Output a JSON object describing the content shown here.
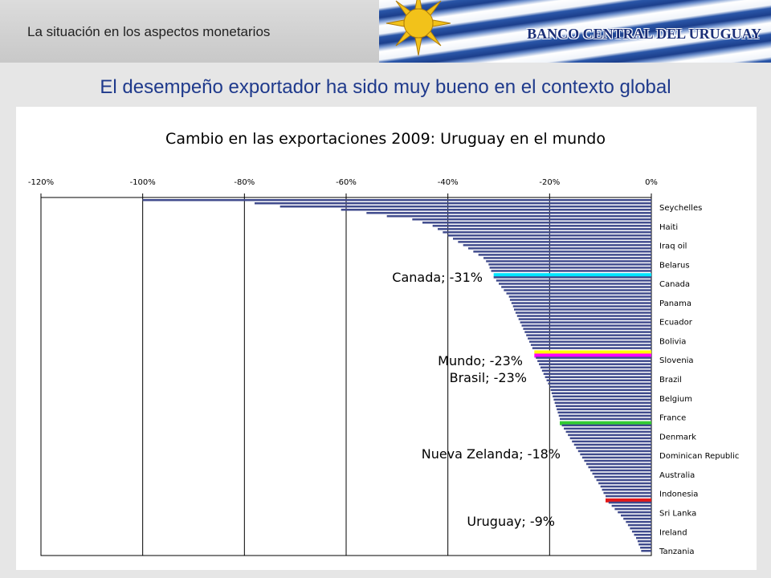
{
  "header": {
    "section_label": "La situación en los aspectos monetarios",
    "bank_name": "BANCO CENTRAL DEL URUGUAY"
  },
  "slide_title": "El desempeño exportador ha sido muy bueno en el contexto global",
  "colors": {
    "bar_default": "#3f4a8c",
    "highlight_canada": "#00e5ff",
    "highlight_mundo": "#ffff00",
    "highlight_brasil": "#ff00ff",
    "highlight_nueva_zelanda": "#33cc33",
    "highlight_uruguay": "#e31818",
    "flag_blue": "#1c3f8c",
    "title_blue": "#1f3a8c"
  },
  "chart_data": {
    "type": "bar",
    "orientation": "horizontal",
    "title": "Cambio en las exportaciones 2009: Uruguay en el mundo",
    "xlim": [
      -120,
      0
    ],
    "x_ticks": [
      "-120%",
      "-100%",
      "-80%",
      "-60%",
      "-40%",
      "-20%",
      "0%"
    ],
    "x_tick_values": [
      -120,
      -100,
      -80,
      -60,
      -40,
      -20,
      0
    ],
    "xaxis_position": "top",
    "grid": true,
    "ylabels": [
      "Seychelles",
      "Haiti",
      "Iraq oil",
      "Belarus",
      "Canada",
      "Panama",
      "Ecuador",
      "Bolivia",
      "Slovenia",
      "Brazil",
      "Belgium",
      "France",
      "Denmark",
      "Dominican Republic",
      "Australia",
      "Indonesia",
      "Sri Lanka",
      "Ireland",
      "Tanzania"
    ],
    "n_bars": 110,
    "values": [
      -100,
      -78,
      -73,
      -61,
      -56,
      -52,
      -47,
      -45,
      -43,
      -42,
      -41,
      -40,
      -39,
      -38,
      -37,
      -36,
      -35,
      -34,
      -33,
      -32.5,
      -32,
      -31.8,
      -31.5,
      -31,
      -31,
      -30.5,
      -30,
      -29.5,
      -29,
      -28.5,
      -28,
      -27.8,
      -27.5,
      -27.2,
      -27,
      -26.7,
      -26.4,
      -26.1,
      -25.8,
      -25.5,
      -25.2,
      -24.9,
      -24.6,
      -24.3,
      -24,
      -23.7,
      -23.4,
      -23,
      -23,
      -22.7,
      -22.4,
      -22.1,
      -21.8,
      -21.5,
      -21.2,
      -20.9,
      -20.6,
      -20.3,
      -20,
      -19.8,
      -19.6,
      -19.4,
      -19.2,
      -19,
      -18.8,
      -18.6,
      -18.4,
      -18.2,
      -18,
      -18,
      -17.6,
      -17.2,
      -16.8,
      -16.4,
      -16,
      -15.6,
      -15.2,
      -14.8,
      -14.4,
      -14,
      -13.6,
      -13.2,
      -12.8,
      -12.4,
      -12,
      -11.6,
      -11.2,
      -10.8,
      -10.4,
      -10,
      -9.7,
      -9.4,
      -9,
      -9,
      -8.4,
      -7.8,
      -7.2,
      -6.6,
      -6,
      -5.5,
      -5,
      -4.6,
      -4.2,
      -3.8,
      -3.4,
      -3,
      -2.7,
      -2.5,
      -2.2,
      -2
    ],
    "highlights": [
      {
        "label": "Canada; -31%",
        "index": 23,
        "value": -31,
        "color": "#00e5ff"
      },
      {
        "label": "Mundo; -23%",
        "index": 47,
        "value": -23,
        "color": "#ffff00"
      },
      {
        "label": "Brasil; -23%",
        "index": 48,
        "value": -23,
        "color": "#ff00ff"
      },
      {
        "label": "Nueva Zelanda; -18%",
        "index": 69,
        "value": -18,
        "color": "#33cc33"
      },
      {
        "label": "Uruguay; -9%",
        "index": 93,
        "value": -9,
        "color": "#e31818"
      }
    ]
  }
}
